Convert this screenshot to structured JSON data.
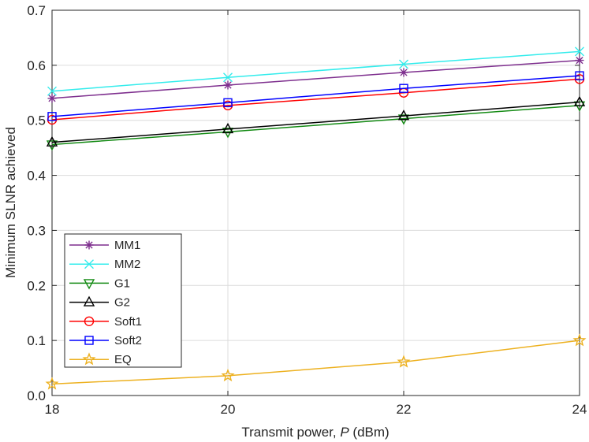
{
  "chart_data": {
    "type": "line",
    "title": "",
    "xlabel": "Transmit power, ",
    "xlabel_var": "P",
    "xlabel_unit": " (dBm)",
    "ylabel": "Minimum SLNR achieved",
    "x": [
      18,
      20,
      22,
      24
    ],
    "xlim": [
      18,
      24
    ],
    "ylim": [
      0,
      0.7
    ],
    "xticks": [
      18,
      20,
      22,
      24
    ],
    "xtick_labels": [
      "18",
      "20",
      "22",
      "24"
    ],
    "yticks": [
      0,
      0.1,
      0.2,
      0.3,
      0.4,
      0.5,
      0.6,
      0.7
    ],
    "ytick_labels": [
      "0.0",
      "0.1",
      "0.2",
      "0.3",
      "0.4",
      "0.5",
      "0.6",
      "0.7"
    ],
    "grid": true,
    "legend_position": "lower-left",
    "series": [
      {
        "name": "MM1",
        "values": [
          0.54,
          0.564,
          0.587,
          0.609
        ],
        "color": "#7e2f8e",
        "marker": "asterisk"
      },
      {
        "name": "MM2",
        "values": [
          0.553,
          0.578,
          0.602,
          0.625
        ],
        "color": "#33ecec",
        "marker": "x"
      },
      {
        "name": "G1",
        "values": [
          0.456,
          0.479,
          0.503,
          0.527
        ],
        "color": "#138a13",
        "marker": "triangle-down"
      },
      {
        "name": "G2",
        "values": [
          0.46,
          0.484,
          0.508,
          0.533
        ],
        "color": "#000000",
        "marker": "triangle-up"
      },
      {
        "name": "Soft1",
        "values": [
          0.501,
          0.527,
          0.55,
          0.575
        ],
        "color": "#ff0000",
        "marker": "circle"
      },
      {
        "name": "Soft2",
        "values": [
          0.507,
          0.532,
          0.558,
          0.581
        ],
        "color": "#0000ff",
        "marker": "square"
      },
      {
        "name": "EQ",
        "values": [
          0.021,
          0.036,
          0.061,
          0.1
        ],
        "color": "#edb120",
        "marker": "star"
      }
    ]
  }
}
